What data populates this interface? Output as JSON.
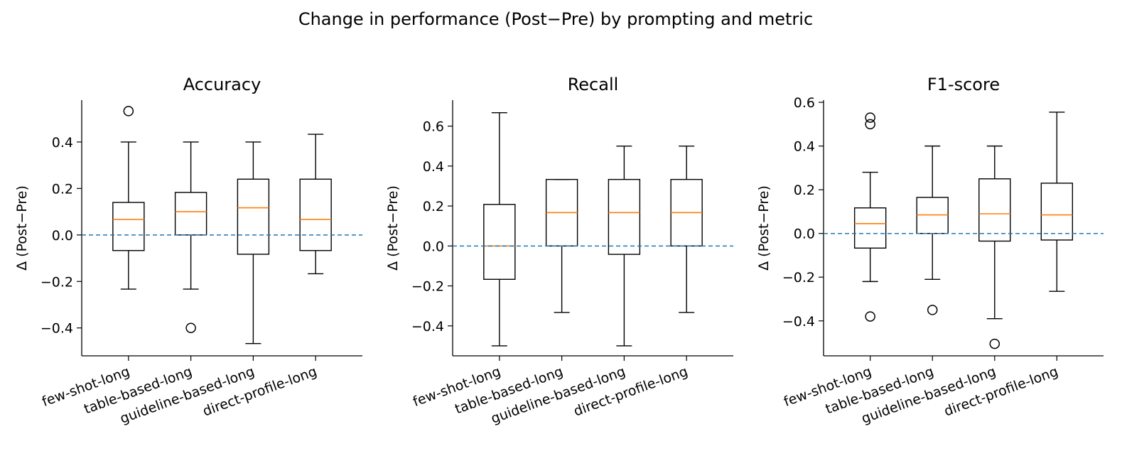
{
  "chart_data": {
    "suptitle": "Change in performance (Post−Pre) by prompting and metric",
    "type": "boxplot",
    "categories": [
      "few-shot-long",
      "table-based-long",
      "guideline-based-long",
      "direct-profile-long"
    ],
    "reference_line": {
      "y": 0,
      "style": "dashed",
      "color": "#1f77b4"
    },
    "colors": {
      "box": "#000000",
      "median": "#ff7f0e",
      "refline": "#1f77b4"
    },
    "panels": [
      {
        "title": "Accuracy",
        "ylabel": "Δ (Post−Pre)",
        "ylim": [
          -0.52,
          0.58
        ],
        "yticks": [
          -0.4,
          -0.2,
          0.0,
          0.2,
          0.4
        ],
        "ytick_labels": [
          "−0.4",
          "−0.2",
          "0.0",
          "0.2",
          "0.4"
        ],
        "boxes": [
          {
            "category": "few-shot-long",
            "whisker_low": -0.233,
            "q1": -0.067,
            "median": 0.067,
            "q3": 0.14,
            "whisker_high": 0.4,
            "outliers": [
              0.533
            ]
          },
          {
            "category": "table-based-long",
            "whisker_low": -0.233,
            "q1": 0.0,
            "median": 0.1,
            "q3": 0.183,
            "whisker_high": 0.4,
            "outliers": [
              -0.4
            ]
          },
          {
            "category": "guideline-based-long",
            "whisker_low": -0.467,
            "q1": -0.083,
            "median": 0.117,
            "q3": 0.24,
            "whisker_high": 0.4,
            "outliers": []
          },
          {
            "category": "direct-profile-long",
            "whisker_low": -0.167,
            "q1": -0.067,
            "median": 0.067,
            "q3": 0.24,
            "whisker_high": 0.433,
            "outliers": []
          }
        ]
      },
      {
        "title": "Recall",
        "ylabel": "Δ (Post−Pre)",
        "ylim": [
          -0.55,
          0.73
        ],
        "yticks": [
          -0.4,
          -0.2,
          0.0,
          0.2,
          0.4,
          0.6
        ],
        "ytick_labels": [
          "−0.4",
          "−0.2",
          "0.0",
          "0.2",
          "0.4",
          "0.6"
        ],
        "boxes": [
          {
            "category": "few-shot-long",
            "whisker_low": -0.5,
            "q1": -0.167,
            "median": 0.0,
            "q3": 0.208,
            "whisker_high": 0.667,
            "outliers": []
          },
          {
            "category": "table-based-long",
            "whisker_low": -0.333,
            "q1": 0.0,
            "median": 0.167,
            "q3": 0.333,
            "whisker_high": 0.333,
            "outliers": []
          },
          {
            "category": "guideline-based-long",
            "whisker_low": -0.5,
            "q1": -0.042,
            "median": 0.167,
            "q3": 0.333,
            "whisker_high": 0.5,
            "outliers": []
          },
          {
            "category": "direct-profile-long",
            "whisker_low": -0.333,
            "q1": 0.0,
            "median": 0.167,
            "q3": 0.333,
            "whisker_high": 0.5,
            "outliers": []
          }
        ]
      },
      {
        "title": "F1-score",
        "ylabel": "Δ (Post−Pre)",
        "ylim": [
          -0.56,
          0.61
        ],
        "yticks": [
          -0.4,
          -0.2,
          0.0,
          0.2,
          0.4,
          0.6
        ],
        "ytick_labels": [
          "−0.4",
          "−0.2",
          "0.0",
          "0.2",
          "0.4",
          "0.6"
        ],
        "boxes": [
          {
            "category": "few-shot-long",
            "whisker_low": -0.22,
            "q1": -0.067,
            "median": 0.045,
            "q3": 0.117,
            "whisker_high": 0.28,
            "outliers": [
              0.53,
              0.5,
              -0.38
            ]
          },
          {
            "category": "table-based-long",
            "whisker_low": -0.21,
            "q1": 0.0,
            "median": 0.085,
            "q3": 0.165,
            "whisker_high": 0.4,
            "outliers": [
              -0.35
            ]
          },
          {
            "category": "guideline-based-long",
            "whisker_low": -0.39,
            "q1": -0.035,
            "median": 0.09,
            "q3": 0.25,
            "whisker_high": 0.4,
            "outliers": [
              -0.505
            ]
          },
          {
            "category": "direct-profile-long",
            "whisker_low": -0.265,
            "q1": -0.03,
            "median": 0.085,
            "q3": 0.23,
            "whisker_high": 0.555,
            "outliers": []
          }
        ]
      }
    ]
  }
}
